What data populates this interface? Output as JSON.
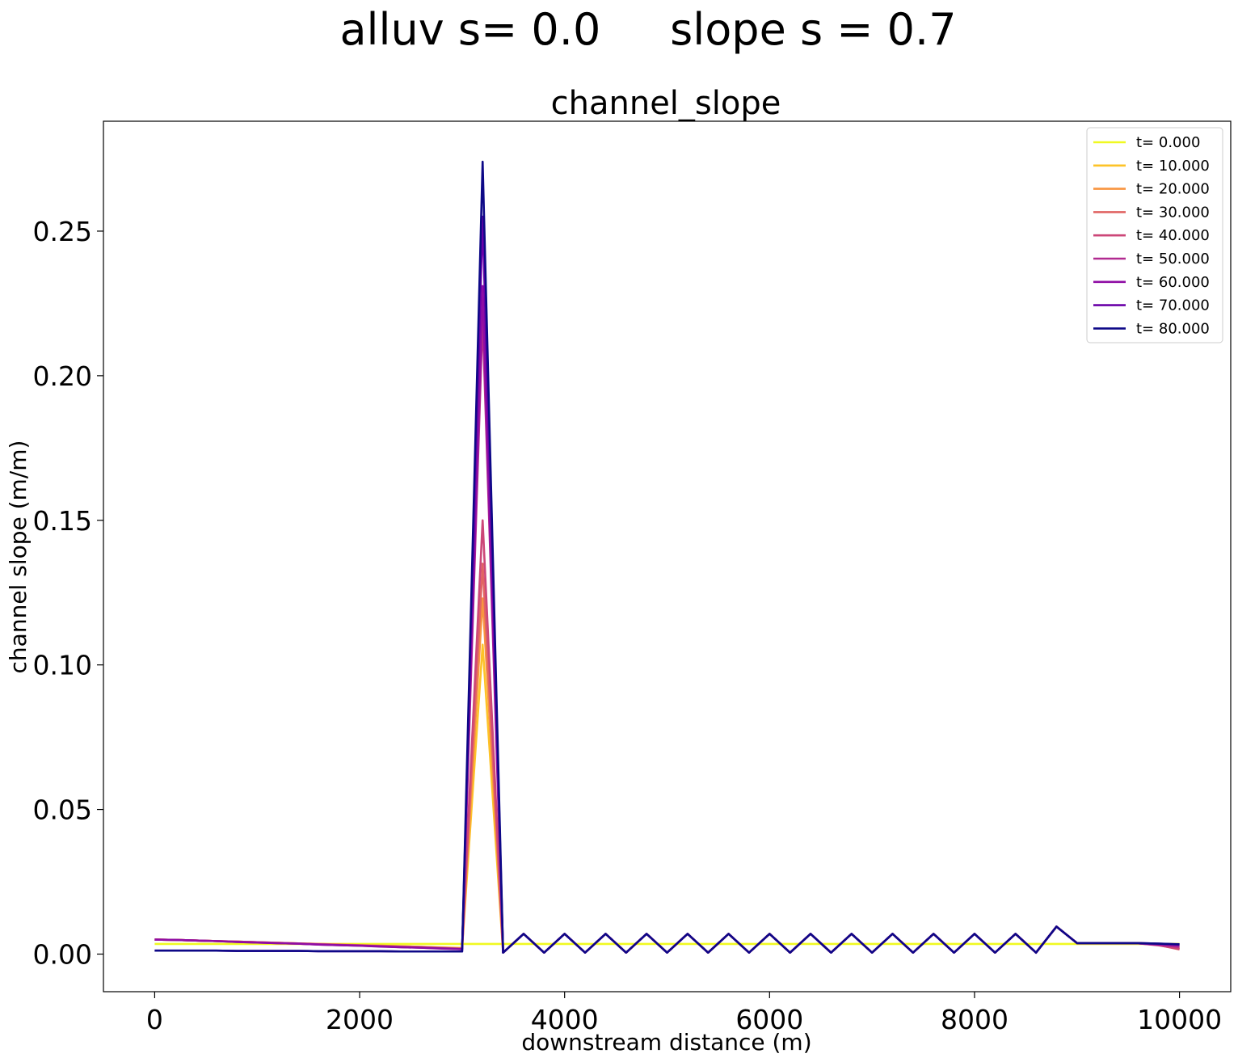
{
  "figure": {
    "suptitle": "alluv s= 0.0     slope s = 0.7"
  },
  "chart_data": {
    "type": "line",
    "title": "channel_slope",
    "xlabel": "downstream distance (m)",
    "ylabel": "channel slope (m/m)",
    "xlim": [
      -500,
      10500
    ],
    "ylim": [
      -0.013,
      0.288
    ],
    "xticks": [
      0,
      2000,
      4000,
      6000,
      8000,
      10000
    ],
    "xtick_labels": [
      "0",
      "2000",
      "4000",
      "6000",
      "8000",
      "10000"
    ],
    "yticks": [
      0.0,
      0.05,
      0.1,
      0.15,
      0.2,
      0.25
    ],
    "ytick_labels": [
      "0.00",
      "0.05",
      "0.10",
      "0.15",
      "0.20",
      "0.25"
    ],
    "grid": false,
    "legend_position": "top-right",
    "x": [
      0,
      200,
      400,
      600,
      800,
      1000,
      1200,
      1400,
      1600,
      1800,
      2000,
      2200,
      2400,
      2600,
      2800,
      3000,
      3200,
      3400,
      3600,
      3800,
      4000,
      4200,
      4400,
      4600,
      4800,
      5000,
      5200,
      5400,
      5600,
      5800,
      6000,
      6200,
      6400,
      6600,
      6800,
      7000,
      7200,
      7400,
      7600,
      7800,
      8000,
      8200,
      8400,
      8600,
      8800,
      9000,
      9200,
      9400,
      9600,
      9800,
      10000
    ],
    "series": [
      {
        "name": "t= 0.000",
        "color": "#f0f921",
        "values": [
          0.0035,
          0.0035,
          0.0035,
          0.0035,
          0.0035,
          0.0035,
          0.0035,
          0.0035,
          0.0035,
          0.0035,
          0.0035,
          0.0035,
          0.0035,
          0.0035,
          0.0035,
          0.0035,
          0.0035,
          0.0035,
          0.0035,
          0.0035,
          0.0035,
          0.0035,
          0.0035,
          0.0035,
          0.0035,
          0.0035,
          0.0035,
          0.0035,
          0.0035,
          0.0035,
          0.0035,
          0.0035,
          0.0035,
          0.0035,
          0.0035,
          0.0035,
          0.0035,
          0.0035,
          0.0035,
          0.0035,
          0.0035,
          0.0035,
          0.0035,
          0.0035,
          0.0035,
          0.0035,
          0.0035,
          0.0035,
          0.0035,
          0.0035,
          0.0035
        ]
      },
      {
        "name": "t= 10.000",
        "color": "#fdc328",
        "values": [
          0.005,
          0.0049,
          0.0047,
          0.0045,
          0.0043,
          0.0041,
          0.0039,
          0.0037,
          0.0035,
          0.0033,
          0.0031,
          0.0029,
          0.0027,
          0.0025,
          0.0023,
          0.0021,
          0.107,
          0.0005,
          0.007,
          0.0005,
          0.007,
          0.0005,
          0.007,
          0.0005,
          0.007,
          0.0005,
          0.007,
          0.0005,
          0.007,
          0.0005,
          0.007,
          0.0005,
          0.007,
          0.0005,
          0.007,
          0.0005,
          0.007,
          0.0005,
          0.007,
          0.0005,
          0.007,
          0.0005,
          0.007,
          0.0005,
          0.0095,
          0.0038,
          0.0038,
          0.0038,
          0.0038,
          0.0035,
          0.0022
        ]
      },
      {
        "name": "t= 20.000",
        "color": "#f89540",
        "values": [
          0.005,
          0.0049,
          0.0047,
          0.0045,
          0.0043,
          0.0041,
          0.0039,
          0.0037,
          0.0035,
          0.0033,
          0.0031,
          0.0029,
          0.0027,
          0.0025,
          0.0022,
          0.002,
          0.123,
          0.0005,
          0.007,
          0.0005,
          0.007,
          0.0005,
          0.007,
          0.0005,
          0.007,
          0.0005,
          0.007,
          0.0005,
          0.007,
          0.0005,
          0.007,
          0.0005,
          0.007,
          0.0005,
          0.007,
          0.0005,
          0.007,
          0.0005,
          0.007,
          0.0005,
          0.007,
          0.0005,
          0.007,
          0.0005,
          0.0095,
          0.0038,
          0.0038,
          0.0038,
          0.0038,
          0.0033,
          0.0018
        ]
      },
      {
        "name": "t= 30.000",
        "color": "#e16462",
        "values": [
          0.005,
          0.0049,
          0.0047,
          0.0045,
          0.0043,
          0.0041,
          0.0039,
          0.0037,
          0.0034,
          0.0032,
          0.003,
          0.0028,
          0.0026,
          0.0024,
          0.0021,
          0.0019,
          0.135,
          0.0005,
          0.007,
          0.0005,
          0.007,
          0.0005,
          0.007,
          0.0005,
          0.007,
          0.0005,
          0.007,
          0.0005,
          0.007,
          0.0005,
          0.007,
          0.0005,
          0.007,
          0.0005,
          0.007,
          0.0005,
          0.007,
          0.0005,
          0.007,
          0.0005,
          0.007,
          0.0005,
          0.007,
          0.0005,
          0.0095,
          0.0038,
          0.0038,
          0.0038,
          0.0037,
          0.0031,
          0.0016
        ]
      },
      {
        "name": "t= 40.000",
        "color": "#cc4778",
        "values": [
          0.005,
          0.0049,
          0.0047,
          0.0045,
          0.0043,
          0.0041,
          0.0038,
          0.0036,
          0.0034,
          0.0032,
          0.003,
          0.0027,
          0.0025,
          0.0023,
          0.0021,
          0.0018,
          0.15,
          0.0005,
          0.007,
          0.0005,
          0.007,
          0.0005,
          0.007,
          0.0005,
          0.007,
          0.0005,
          0.007,
          0.0005,
          0.007,
          0.0005,
          0.007,
          0.0005,
          0.007,
          0.0005,
          0.007,
          0.0005,
          0.007,
          0.0005,
          0.007,
          0.0005,
          0.007,
          0.0005,
          0.007,
          0.0005,
          0.0095,
          0.0038,
          0.0038,
          0.0038,
          0.0037,
          0.003,
          0.0018
        ]
      },
      {
        "name": "t= 50.000",
        "color": "#b12a90",
        "values": [
          0.005,
          0.0049,
          0.0047,
          0.0045,
          0.0042,
          0.004,
          0.0038,
          0.0036,
          0.0033,
          0.0031,
          0.0029,
          0.0027,
          0.0024,
          0.0022,
          0.002,
          0.0017,
          0.22,
          0.0005,
          0.007,
          0.0005,
          0.007,
          0.0005,
          0.007,
          0.0005,
          0.007,
          0.0005,
          0.007,
          0.0005,
          0.007,
          0.0005,
          0.007,
          0.0005,
          0.007,
          0.0005,
          0.007,
          0.0005,
          0.007,
          0.0005,
          0.007,
          0.0005,
          0.007,
          0.0005,
          0.007,
          0.0005,
          0.0095,
          0.0038,
          0.0038,
          0.0038,
          0.0037,
          0.0032,
          0.0025
        ]
      },
      {
        "name": "t= 60.000",
        "color": "#8f0da4",
        "values": [
          0.005,
          0.0049,
          0.0047,
          0.0045,
          0.0042,
          0.004,
          0.0038,
          0.0036,
          0.0033,
          0.0031,
          0.0029,
          0.0026,
          0.0024,
          0.0022,
          0.0019,
          0.0017,
          0.231,
          0.0005,
          0.007,
          0.0005,
          0.007,
          0.0005,
          0.007,
          0.0005,
          0.007,
          0.0005,
          0.007,
          0.0005,
          0.007,
          0.0005,
          0.007,
          0.0005,
          0.007,
          0.0005,
          0.007,
          0.0005,
          0.007,
          0.0005,
          0.007,
          0.0005,
          0.007,
          0.0005,
          0.007,
          0.0005,
          0.0095,
          0.0038,
          0.0038,
          0.0038,
          0.0037,
          0.0034,
          0.003
        ]
      },
      {
        "name": "t= 70.000",
        "color": "#6a00a8",
        "values": [
          0.0012,
          0.0012,
          0.0012,
          0.0012,
          0.0011,
          0.0011,
          0.0011,
          0.0011,
          0.001,
          0.001,
          0.001,
          0.001,
          0.0009,
          0.0009,
          0.0009,
          0.0009,
          0.255,
          0.0005,
          0.007,
          0.0005,
          0.007,
          0.0005,
          0.007,
          0.0005,
          0.007,
          0.0005,
          0.007,
          0.0005,
          0.007,
          0.0005,
          0.007,
          0.0005,
          0.007,
          0.0005,
          0.007,
          0.0005,
          0.007,
          0.0005,
          0.007,
          0.0005,
          0.007,
          0.0005,
          0.007,
          0.0005,
          0.0095,
          0.0038,
          0.0038,
          0.0038,
          0.0038,
          0.0036,
          0.0033
        ]
      },
      {
        "name": "t= 80.000",
        "color": "#0d0887",
        "values": [
          0.0012,
          0.0012,
          0.0012,
          0.0012,
          0.0011,
          0.0011,
          0.0011,
          0.0011,
          0.001,
          0.001,
          0.001,
          0.001,
          0.0009,
          0.0009,
          0.0009,
          0.0009,
          0.274,
          0.0005,
          0.007,
          0.0005,
          0.007,
          0.0005,
          0.007,
          0.0005,
          0.007,
          0.0005,
          0.007,
          0.0005,
          0.007,
          0.0005,
          0.007,
          0.0005,
          0.007,
          0.0005,
          0.007,
          0.0005,
          0.007,
          0.0005,
          0.007,
          0.0005,
          0.007,
          0.0005,
          0.007,
          0.0005,
          0.0095,
          0.0038,
          0.0038,
          0.0038,
          0.0038,
          0.0036,
          0.0034
        ]
      }
    ]
  }
}
